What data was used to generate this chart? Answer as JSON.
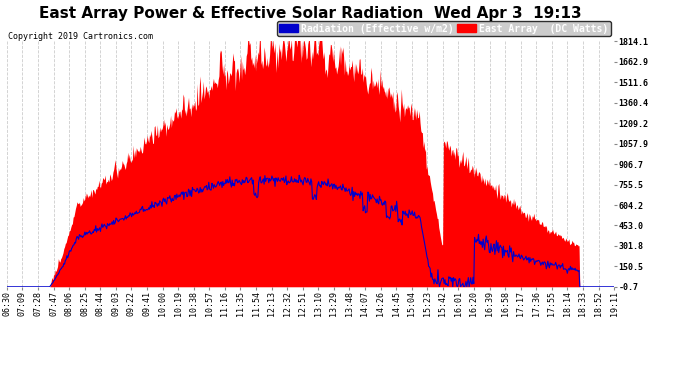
{
  "title": "East Array Power & Effective Solar Radiation  Wed Apr 3  19:13",
  "copyright": "Copyright 2019 Cartronics.com",
  "legend_radiation": "Radiation (Effective w/m2)",
  "legend_east": "East Array  (DC Watts)",
  "background_color": "#ffffff",
  "plot_bg_color": "#ffffff",
  "ylim": [
    -0.7,
    1814.1
  ],
  "yticks": [
    -0.7,
    150.5,
    301.8,
    453.0,
    604.2,
    755.5,
    906.7,
    1057.9,
    1209.2,
    1360.4,
    1511.6,
    1662.9,
    1814.1
  ],
  "xtick_labels": [
    "06:30",
    "07:09",
    "07:28",
    "07:47",
    "08:06",
    "08:25",
    "08:44",
    "09:03",
    "09:22",
    "09:41",
    "10:00",
    "10:19",
    "10:38",
    "10:57",
    "11:16",
    "11:35",
    "11:54",
    "12:13",
    "12:32",
    "12:51",
    "13:10",
    "13:29",
    "13:48",
    "14:07",
    "14:26",
    "14:45",
    "15:04",
    "15:23",
    "15:42",
    "16:01",
    "16:20",
    "16:39",
    "16:58",
    "17:17",
    "17:36",
    "17:55",
    "18:14",
    "18:33",
    "18:52",
    "19:11"
  ],
  "radiation_color": "#ff0000",
  "east_color": "#0000cc",
  "grid_color": "#cccccc",
  "title_color": "#000000",
  "title_fontsize": 11,
  "tick_fontsize": 6,
  "legend_fontsize": 7.5,
  "yticklabel_color": "#000000",
  "num_points": 780
}
